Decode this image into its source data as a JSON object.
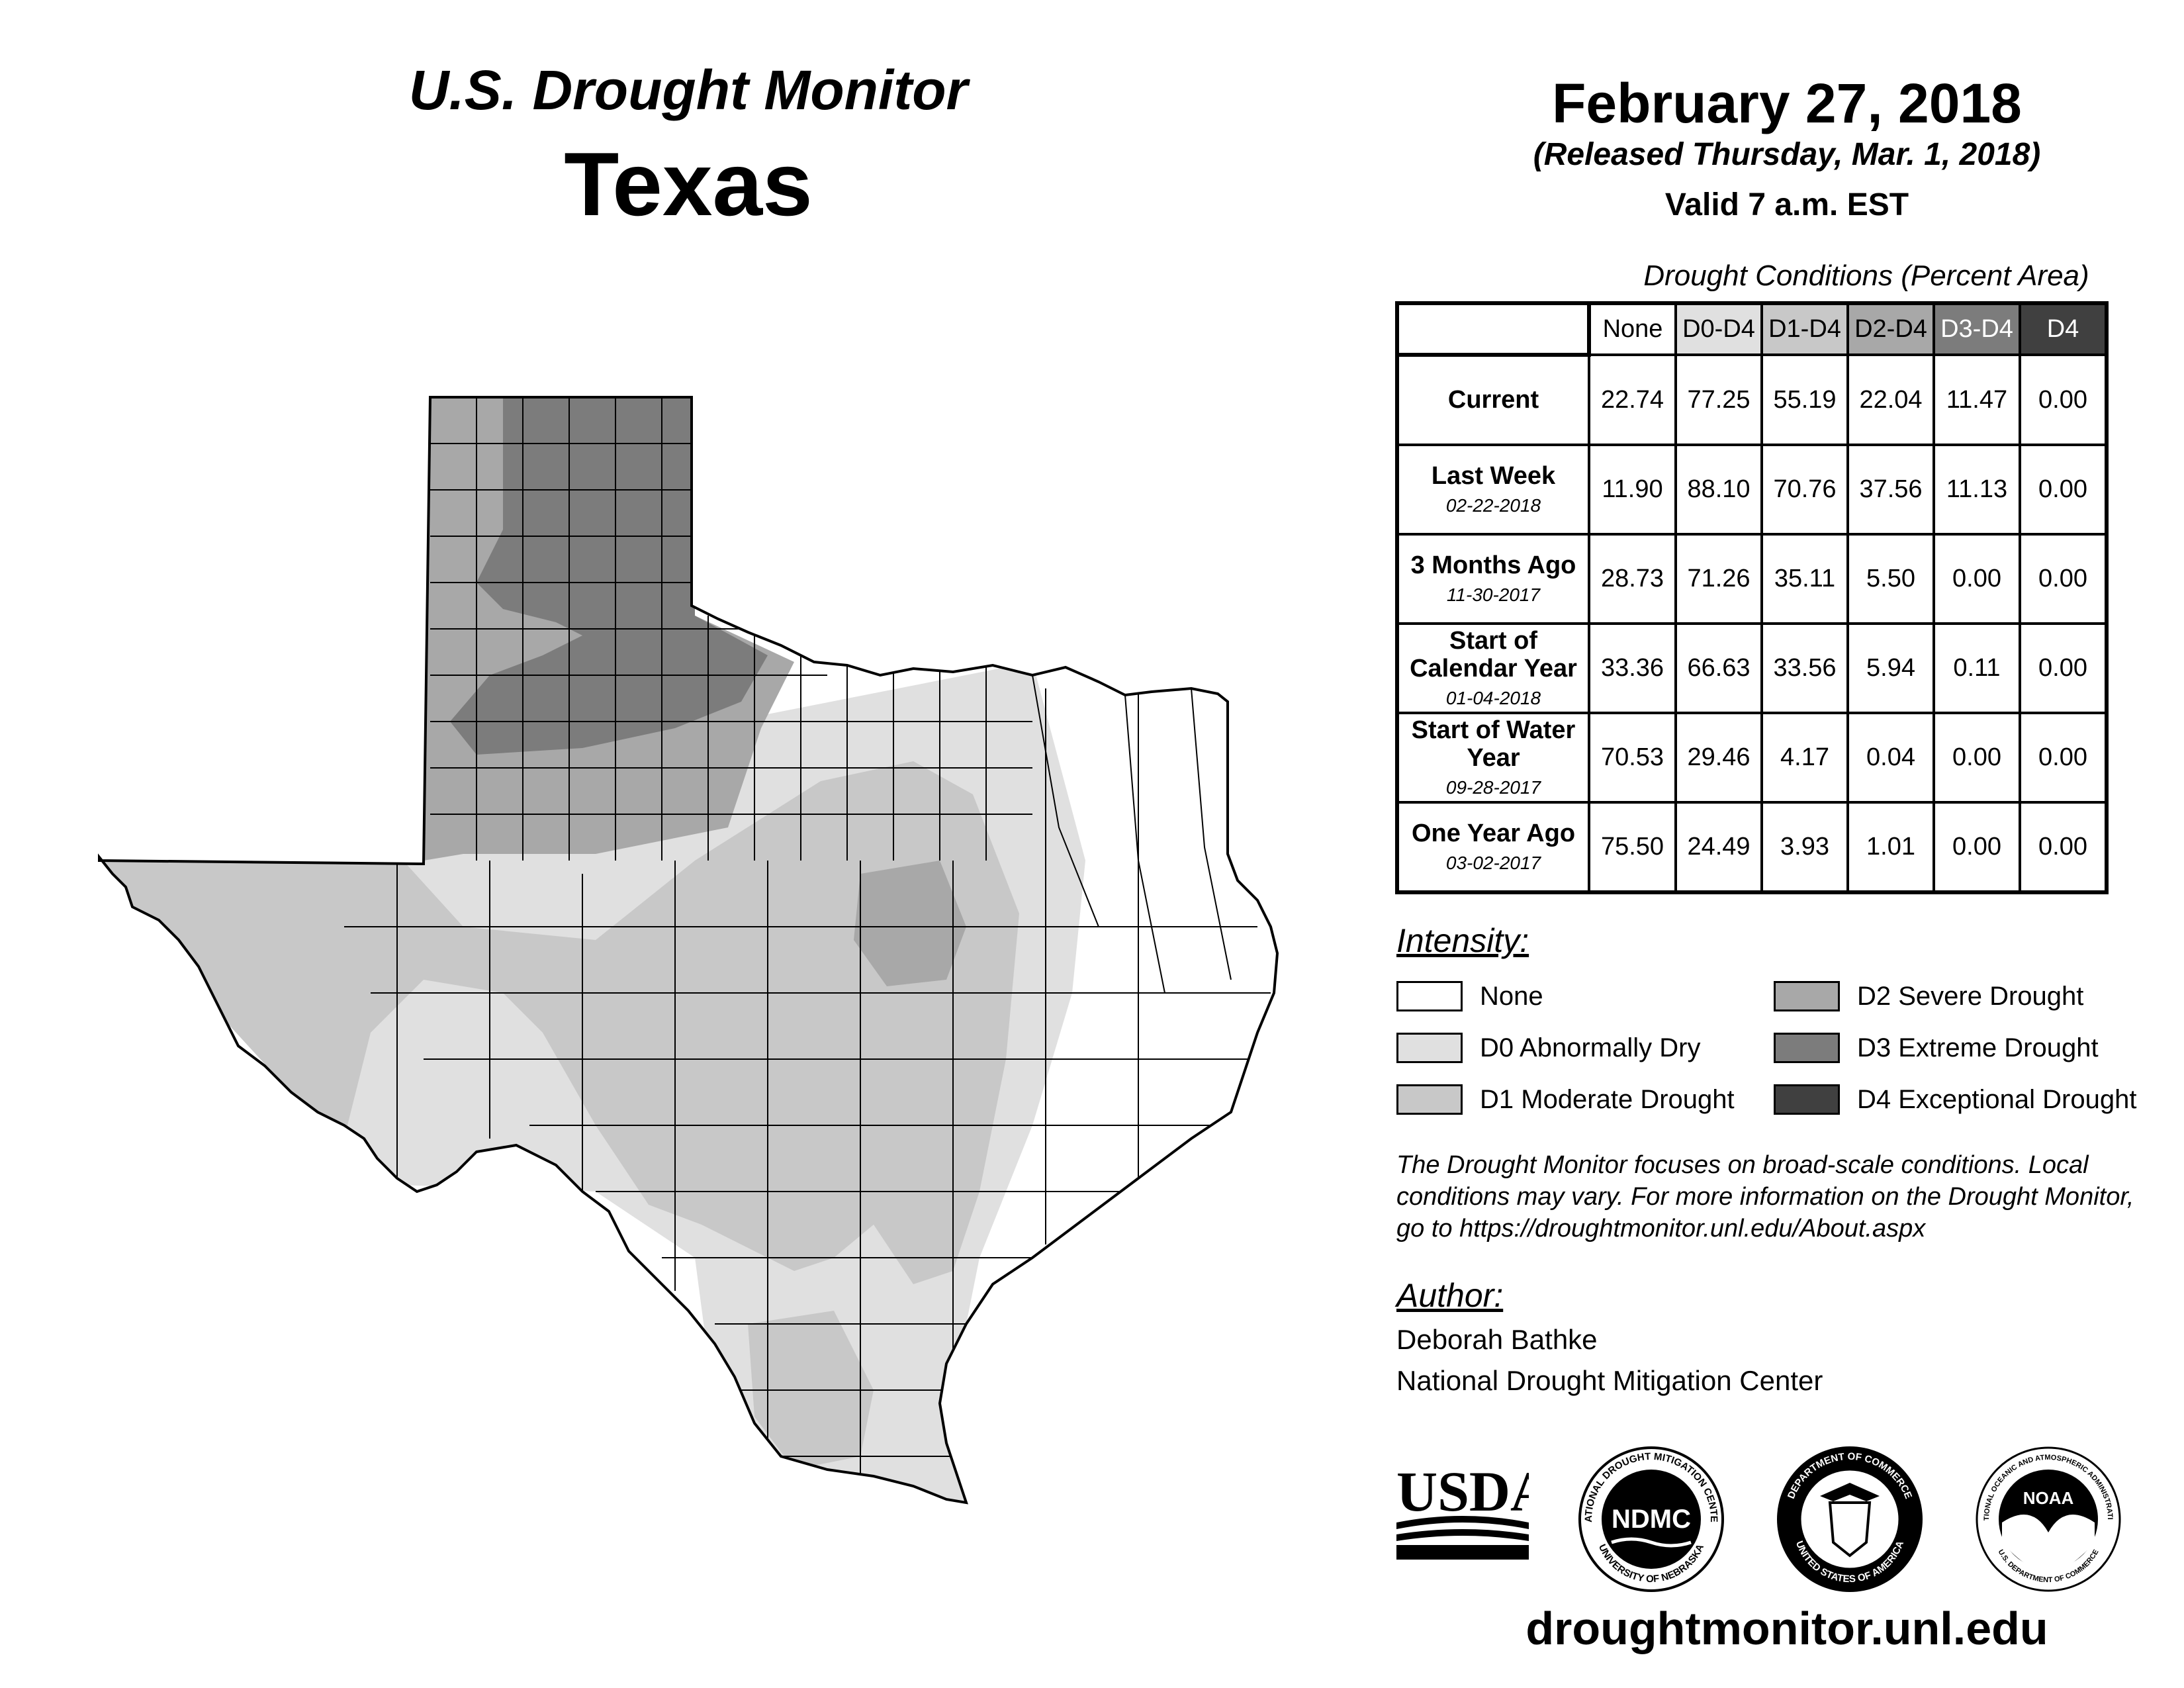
{
  "header": {
    "subtitle": "U.S. Drought Monitor",
    "state": "Texas",
    "date": "February 27, 2018",
    "released": "(Released Thursday, Mar. 1, 2018)",
    "valid": "Valid 7 a.m. EST"
  },
  "table": {
    "caption": "Drought Conditions (Percent Area)",
    "columns": [
      "None",
      "D0-D4",
      "D1-D4",
      "D2-D4",
      "D3-D4",
      "D4"
    ],
    "column_colors": [
      "#ffffff",
      "#e0e0e0",
      "#c8c8c8",
      "#a8a8a8",
      "#7c7c7c",
      "#404040"
    ],
    "rows": [
      {
        "label": "Current",
        "date": "",
        "values": [
          "22.74",
          "77.25",
          "55.19",
          "22.04",
          "11.47",
          "0.00"
        ]
      },
      {
        "label": "Last Week",
        "date": "02-22-2018",
        "values": [
          "11.90",
          "88.10",
          "70.76",
          "37.56",
          "11.13",
          "0.00"
        ]
      },
      {
        "label": "3 Months Ago",
        "date": "11-30-2017",
        "values": [
          "28.73",
          "71.26",
          "35.11",
          "5.50",
          "0.00",
          "0.00"
        ]
      },
      {
        "label": "Start of Calendar Year",
        "date": "01-04-2018",
        "values": [
          "33.36",
          "66.63",
          "33.56",
          "5.94",
          "0.11",
          "0.00"
        ]
      },
      {
        "label": "Start of Water Year",
        "date": "09-28-2017",
        "values": [
          "70.53",
          "29.46",
          "4.17",
          "0.04",
          "0.00",
          "0.00"
        ]
      },
      {
        "label": "One Year Ago",
        "date": "03-02-2017",
        "values": [
          "75.50",
          "24.49",
          "3.93",
          "1.01",
          "0.00",
          "0.00"
        ]
      }
    ]
  },
  "legend": {
    "title": "Intensity:",
    "items": [
      {
        "label": "None",
        "color": "#ffffff"
      },
      {
        "label": "D0 Abnormally Dry",
        "color": "#e0e0e0"
      },
      {
        "label": "D1 Moderate Drought",
        "color": "#c8c8c8"
      },
      {
        "label": "D2 Severe Drought",
        "color": "#a8a8a8"
      },
      {
        "label": "D3 Extreme Drought",
        "color": "#7c7c7c"
      },
      {
        "label": "D4 Exceptional Drought",
        "color": "#404040"
      }
    ]
  },
  "disclaimer": "The Drought Monitor focuses on broad-scale conditions. Local conditions may vary. For more information on the Drought Monitor, go to https://droughtmonitor.unl.edu/About.aspx",
  "author": {
    "title": "Author:",
    "name": "Deborah Bathke",
    "org": "National Drought Mitigation Center"
  },
  "logos": {
    "usda": "USDA",
    "ndmc": "NDMC",
    "ndmc_ring_top": "NATIONAL DROUGHT MITIGATION CENTER",
    "ndmc_ring_bottom": "UNIVERSITY OF NEBRASKA",
    "doc_ring_top": "DEPARTMENT OF COMMERCE",
    "doc_ring_bottom": "UNITED STATES OF AMERICA",
    "noaa": "NOAA",
    "noaa_ring_top": "NATIONAL OCEANIC AND ATMOSPHERIC ADMINISTRATION",
    "noaa_ring_bottom": "U.S. DEPARTMENT OF COMMERCE"
  },
  "website": "droughtmonitor.unl.edu"
}
